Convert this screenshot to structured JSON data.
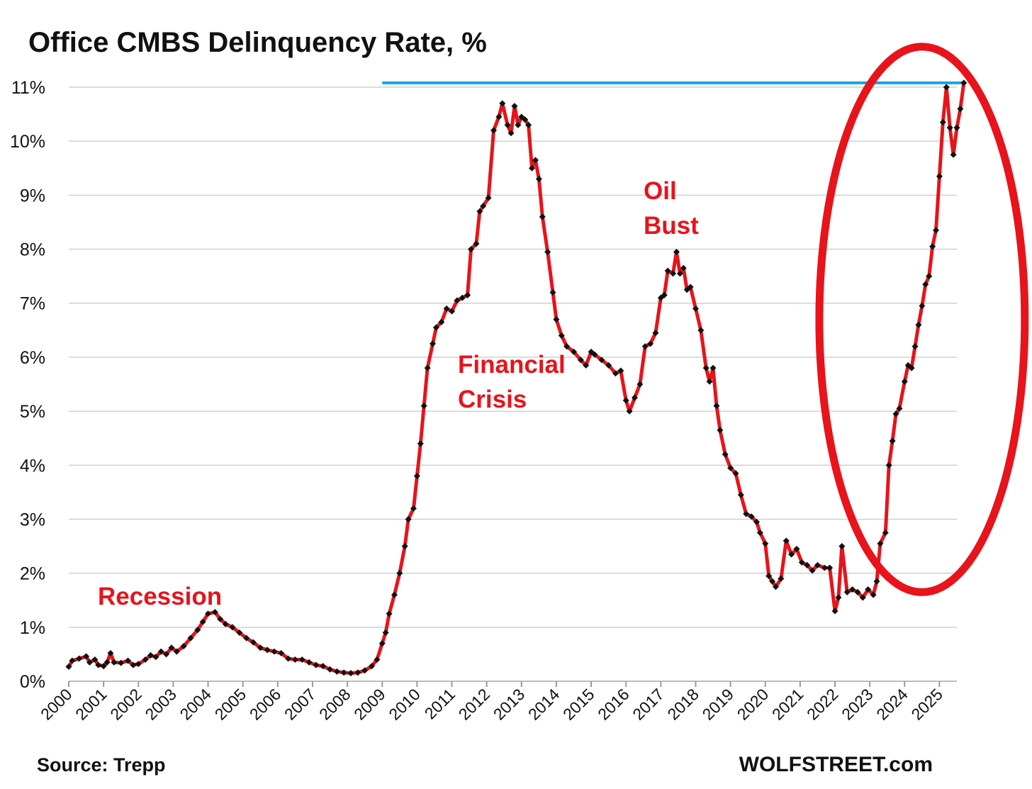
{
  "chart_data": {
    "type": "line",
    "title": "Office CMBS Delinquency Rate, %",
    "xlabel": "",
    "ylabel": "",
    "ylim": [
      0,
      11
    ],
    "xlim": [
      2000,
      2025.5
    ],
    "grid": true,
    "y_ticks": [
      "0%",
      "1%",
      "2%",
      "3%",
      "4%",
      "5%",
      "6%",
      "7%",
      "8%",
      "9%",
      "10%",
      "11%"
    ],
    "x_ticks": [
      "2000",
      "2001",
      "2002",
      "2003",
      "2004",
      "2005",
      "2006",
      "2007",
      "2008",
      "2009",
      "2010",
      "2011",
      "2012",
      "2013",
      "2014",
      "2015",
      "2016",
      "2017",
      "2018",
      "2019",
      "2020",
      "2021",
      "2022",
      "2023",
      "2024",
      "2025"
    ],
    "series": [
      {
        "color": "#e8131b",
        "marker_color": "#111111",
        "points": [
          [
            2000.0,
            0.27
          ],
          [
            2000.1,
            0.38
          ],
          [
            2000.3,
            0.42
          ],
          [
            2000.5,
            0.46
          ],
          [
            2000.6,
            0.35
          ],
          [
            2000.75,
            0.4
          ],
          [
            2000.85,
            0.3
          ],
          [
            2001.0,
            0.28
          ],
          [
            2001.1,
            0.35
          ],
          [
            2001.2,
            0.52
          ],
          [
            2001.3,
            0.35
          ],
          [
            2001.5,
            0.34
          ],
          [
            2001.7,
            0.38
          ],
          [
            2001.85,
            0.3
          ],
          [
            2002.0,
            0.32
          ],
          [
            2002.2,
            0.4
          ],
          [
            2002.35,
            0.48
          ],
          [
            2002.5,
            0.45
          ],
          [
            2002.65,
            0.55
          ],
          [
            2002.8,
            0.5
          ],
          [
            2002.95,
            0.62
          ],
          [
            2003.1,
            0.55
          ],
          [
            2003.3,
            0.65
          ],
          [
            2003.5,
            0.8
          ],
          [
            2003.7,
            0.95
          ],
          [
            2003.85,
            1.1
          ],
          [
            2004.0,
            1.25
          ],
          [
            2004.2,
            1.28
          ],
          [
            2004.35,
            1.15
          ],
          [
            2004.5,
            1.06
          ],
          [
            2004.7,
            1.0
          ],
          [
            2004.9,
            0.9
          ],
          [
            2005.1,
            0.8
          ],
          [
            2005.3,
            0.72
          ],
          [
            2005.5,
            0.62
          ],
          [
            2005.7,
            0.58
          ],
          [
            2005.9,
            0.55
          ],
          [
            2006.1,
            0.52
          ],
          [
            2006.3,
            0.42
          ],
          [
            2006.5,
            0.4
          ],
          [
            2006.7,
            0.4
          ],
          [
            2006.9,
            0.35
          ],
          [
            2007.1,
            0.3
          ],
          [
            2007.3,
            0.28
          ],
          [
            2007.5,
            0.22
          ],
          [
            2007.7,
            0.18
          ],
          [
            2007.9,
            0.16
          ],
          [
            2008.1,
            0.15
          ],
          [
            2008.3,
            0.16
          ],
          [
            2008.5,
            0.2
          ],
          [
            2008.7,
            0.28
          ],
          [
            2008.85,
            0.4
          ],
          [
            2009.0,
            0.7
          ],
          [
            2009.1,
            0.9
          ],
          [
            2009.2,
            1.25
          ],
          [
            2009.35,
            1.6
          ],
          [
            2009.5,
            2.0
          ],
          [
            2009.65,
            2.5
          ],
          [
            2009.75,
            3.0
          ],
          [
            2009.9,
            3.2
          ],
          [
            2010.0,
            3.8
          ],
          [
            2010.1,
            4.4
          ],
          [
            2010.2,
            5.1
          ],
          [
            2010.3,
            5.8
          ],
          [
            2010.45,
            6.25
          ],
          [
            2010.55,
            6.55
          ],
          [
            2010.7,
            6.65
          ],
          [
            2010.85,
            6.9
          ],
          [
            2011.0,
            6.85
          ],
          [
            2011.15,
            7.05
          ],
          [
            2011.3,
            7.1
          ],
          [
            2011.45,
            7.15
          ],
          [
            2011.55,
            8.0
          ],
          [
            2011.7,
            8.1
          ],
          [
            2011.8,
            8.7
          ],
          [
            2011.9,
            8.8
          ],
          [
            2012.05,
            8.95
          ],
          [
            2012.2,
            10.2
          ],
          [
            2012.35,
            10.45
          ],
          [
            2012.45,
            10.7
          ],
          [
            2012.6,
            10.3
          ],
          [
            2012.7,
            10.15
          ],
          [
            2012.8,
            10.65
          ],
          [
            2012.9,
            10.3
          ],
          [
            2013.0,
            10.45
          ],
          [
            2013.1,
            10.4
          ],
          [
            2013.2,
            10.3
          ],
          [
            2013.3,
            9.5
          ],
          [
            2013.4,
            9.65
          ],
          [
            2013.5,
            9.3
          ],
          [
            2013.6,
            8.6
          ],
          [
            2013.75,
            7.95
          ],
          [
            2013.9,
            7.2
          ],
          [
            2014.0,
            6.7
          ],
          [
            2014.15,
            6.4
          ],
          [
            2014.3,
            6.2
          ],
          [
            2014.5,
            6.1
          ],
          [
            2014.7,
            5.95
          ],
          [
            2014.85,
            5.85
          ],
          [
            2015.0,
            6.1
          ],
          [
            2015.1,
            6.05
          ],
          [
            2015.3,
            5.95
          ],
          [
            2015.5,
            5.85
          ],
          [
            2015.7,
            5.7
          ],
          [
            2015.85,
            5.75
          ],
          [
            2016.0,
            5.2
          ],
          [
            2016.1,
            5.0
          ],
          [
            2016.25,
            5.25
          ],
          [
            2016.4,
            5.5
          ],
          [
            2016.55,
            6.2
          ],
          [
            2016.7,
            6.25
          ],
          [
            2016.85,
            6.45
          ],
          [
            2017.0,
            7.1
          ],
          [
            2017.1,
            7.15
          ],
          [
            2017.2,
            7.6
          ],
          [
            2017.35,
            7.55
          ],
          [
            2017.45,
            7.95
          ],
          [
            2017.55,
            7.55
          ],
          [
            2017.65,
            7.65
          ],
          [
            2017.75,
            7.25
          ],
          [
            2017.85,
            7.3
          ],
          [
            2018.0,
            6.9
          ],
          [
            2018.15,
            6.5
          ],
          [
            2018.3,
            5.8
          ],
          [
            2018.4,
            5.55
          ],
          [
            2018.5,
            5.8
          ],
          [
            2018.6,
            5.1
          ],
          [
            2018.7,
            4.65
          ],
          [
            2018.85,
            4.2
          ],
          [
            2019.0,
            3.95
          ],
          [
            2019.15,
            3.85
          ],
          [
            2019.3,
            3.45
          ],
          [
            2019.45,
            3.1
          ],
          [
            2019.6,
            3.05
          ],
          [
            2019.75,
            2.95
          ],
          [
            2019.85,
            2.75
          ],
          [
            2020.0,
            2.55
          ],
          [
            2020.1,
            1.95
          ],
          [
            2020.2,
            1.85
          ],
          [
            2020.3,
            1.75
          ],
          [
            2020.45,
            1.9
          ],
          [
            2020.6,
            2.6
          ],
          [
            2020.75,
            2.35
          ],
          [
            2020.9,
            2.45
          ],
          [
            2021.05,
            2.2
          ],
          [
            2021.2,
            2.15
          ],
          [
            2021.35,
            2.05
          ],
          [
            2021.5,
            2.15
          ],
          [
            2021.7,
            2.1
          ],
          [
            2021.85,
            2.1
          ],
          [
            2022.0,
            1.3
          ],
          [
            2022.1,
            1.55
          ],
          [
            2022.2,
            2.5
          ],
          [
            2022.35,
            1.65
          ],
          [
            2022.5,
            1.7
          ],
          [
            2022.65,
            1.65
          ],
          [
            2022.8,
            1.55
          ],
          [
            2022.95,
            1.7
          ],
          [
            2023.1,
            1.6
          ],
          [
            2023.2,
            1.85
          ],
          [
            2023.3,
            2.55
          ],
          [
            2023.45,
            2.75
          ],
          [
            2023.55,
            4.0
          ],
          [
            2023.65,
            4.45
          ],
          [
            2023.75,
            4.95
          ],
          [
            2023.85,
            5.05
          ],
          [
            2024.0,
            5.55
          ],
          [
            2024.1,
            5.85
          ],
          [
            2024.2,
            5.8
          ],
          [
            2024.3,
            6.2
          ],
          [
            2024.4,
            6.6
          ],
          [
            2024.5,
            6.95
          ],
          [
            2024.6,
            7.35
          ],
          [
            2024.7,
            7.5
          ],
          [
            2024.8,
            8.05
          ],
          [
            2024.9,
            8.35
          ],
          [
            2025.0,
            9.35
          ],
          [
            2025.1,
            10.35
          ],
          [
            2025.2,
            11.0
          ],
          [
            2025.3,
            10.25
          ],
          [
            2025.4,
            9.75
          ],
          [
            2025.5,
            10.25
          ],
          [
            2025.6,
            10.6
          ],
          [
            2025.7,
            11.08
          ]
        ]
      }
    ],
    "reference_line": {
      "value": 11.08,
      "from_x": 2009.0,
      "to_x": 2025.7,
      "color": "#1aa3e8"
    },
    "highlight_ellipse": {
      "color": "#e8131b",
      "cx": 2024.5,
      "cy": 6.7,
      "rx_years": 2.95,
      "ry_value": 5.05
    },
    "annotations": [
      {
        "lines": [
          "Recession"
        ]
      },
      {
        "lines": [
          "Financial",
          "Crisis"
        ]
      },
      {
        "lines": [
          "Oil",
          "Bust"
        ]
      }
    ]
  },
  "footer": {
    "source": "Source: Trepp",
    "brand": "WOLFSTREET.com"
  }
}
